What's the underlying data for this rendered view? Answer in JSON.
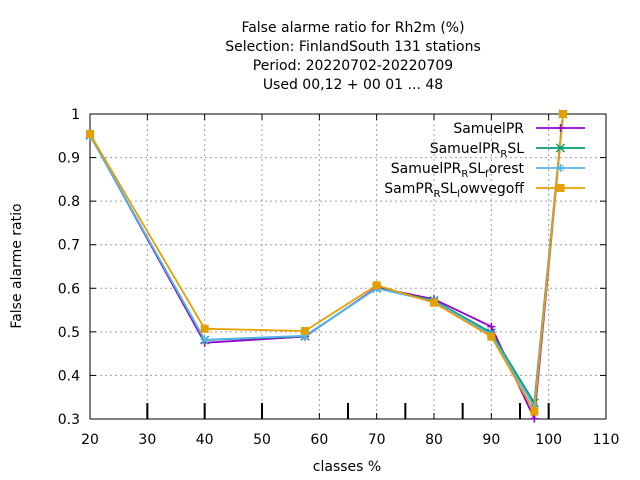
{
  "chart_data": {
    "type": "line",
    "title": [
      "False alarme ratio  for Rh2m (%)",
      "Selection: FinlandSouth    131 stations",
      "Period: 20220702-20220709",
      "Used  00,12  + 00 01 ... 48"
    ],
    "xlabel": "classes %",
    "ylabel": "False alarme ratio",
    "xlim": [
      20,
      110
    ],
    "ylim": [
      0.3,
      1.0
    ],
    "xticks": [
      20,
      30,
      40,
      50,
      60,
      70,
      80,
      90,
      100,
      110
    ],
    "yticks": [
      0.3,
      0.4,
      0.5,
      0.6,
      0.7,
      0.8,
      0.9,
      1.0
    ],
    "ytick_labels": [
      "0.3",
      "0.4",
      "0.5",
      "0.6",
      "0.7",
      "0.8",
      "0.9",
      "1"
    ],
    "grid": true,
    "legend_position": "top-right",
    "class_markers": [
      30,
      40,
      50,
      65,
      75,
      85,
      95,
      100
    ],
    "series": [
      {
        "name": "SamuelPR",
        "legend": {
          "main": "SamuelPR",
          "parts": []
        },
        "color": "#9400d3",
        "marker": "plus",
        "x": [
          20,
          40,
          57.5,
          70,
          80,
          90,
          97.5,
          102.5
        ],
        "y": [
          0.952,
          0.475,
          0.489,
          0.602,
          0.575,
          0.512,
          0.301,
          1.0
        ]
      },
      {
        "name": "SamuelPR_RSL",
        "legend": {
          "main": "SamuelPR",
          "parts": [
            [
              "R",
              "sub"
            ],
            [
              "SL",
              "base"
            ]
          ]
        },
        "color": "#009e73",
        "marker": "cross",
        "x": [
          20,
          40,
          57.5,
          70,
          80,
          90,
          97.5,
          102.5
        ],
        "y": [
          0.951,
          0.481,
          0.49,
          0.6,
          0.572,
          0.498,
          0.337,
          1.0
        ]
      },
      {
        "name": "SamuelPR_RSL_forest",
        "legend": {
          "main": "SamuelPR",
          "parts": [
            [
              "R",
              "sub"
            ],
            [
              "SL",
              "base"
            ],
            [
              "f",
              "sub"
            ],
            [
              "orest",
              "base"
            ]
          ]
        },
        "color": "#56b4e9",
        "marker": "star",
        "x": [
          20,
          40,
          57.5,
          70,
          80,
          90,
          97.5,
          102.5
        ],
        "y": [
          0.951,
          0.482,
          0.491,
          0.6,
          0.57,
          0.494,
          0.328,
          1.0
        ]
      },
      {
        "name": "SamPR_RSL_lowvegoff",
        "legend": {
          "main": "SamPR",
          "parts": [
            [
              "R",
              "sub"
            ],
            [
              "SL",
              "base"
            ],
            [
              "l",
              "sub"
            ],
            [
              "owvegoff",
              "base"
            ]
          ]
        },
        "color": "#e69f00",
        "marker": "box",
        "x": [
          20,
          40,
          57.5,
          70,
          80,
          90,
          97.5,
          102.5
        ],
        "y": [
          0.954,
          0.507,
          0.502,
          0.607,
          0.567,
          0.489,
          0.317,
          1.0
        ]
      }
    ]
  }
}
